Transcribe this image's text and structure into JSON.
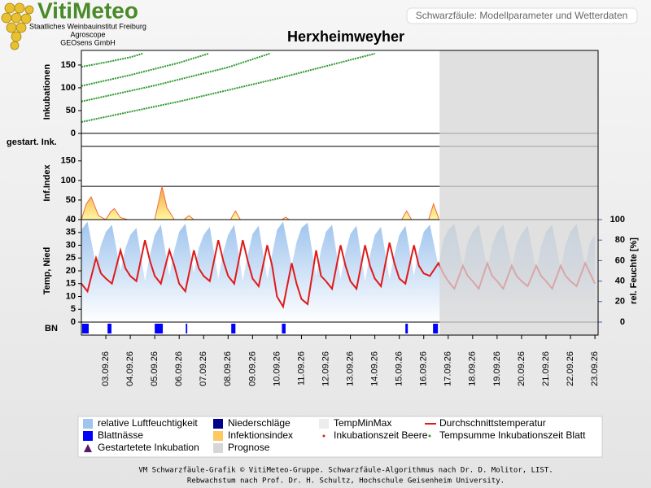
{
  "header": {
    "logo": "VitiMeteo",
    "org": [
      "Staatliches Weinbauinstitut Freiburg",
      "Agroscope",
      "GEOsens GmbH"
    ],
    "subtitle": "Schwarzfäule: Modellparameter und Wetterdaten"
  },
  "chart_data": {
    "type": "panels",
    "title": "Herxheimweyher",
    "xlim": [
      2,
      23.13
    ],
    "xticks": [
      {
        "value": 3,
        "label": "03.09.26"
      },
      {
        "value": 4,
        "label": "04.09.26"
      },
      {
        "value": 5,
        "label": "05.09.26"
      },
      {
        "value": 6,
        "label": "06.09.26"
      },
      {
        "value": 7,
        "label": "07.09.26"
      },
      {
        "value": 8,
        "label": "08.09.26"
      },
      {
        "value": 9,
        "label": "09.09.26"
      },
      {
        "value": 10,
        "label": "10.09.26"
      },
      {
        "value": 11,
        "label": "11.09.26"
      },
      {
        "value": 12,
        "label": "12.09.26"
      },
      {
        "value": 13,
        "label": "13.09.26"
      },
      {
        "value": 14,
        "label": "14.09.26"
      },
      {
        "value": 15,
        "label": "15.09.26"
      },
      {
        "value": 16,
        "label": "16.09.26"
      },
      {
        "value": 17,
        "label": "17.09.26"
      },
      {
        "value": 18,
        "label": "18.09.26"
      },
      {
        "value": 19,
        "label": "19.09.26"
      },
      {
        "value": 20,
        "label": "20.09.26"
      },
      {
        "value": 21,
        "label": "21.09.26"
      },
      {
        "value": 22,
        "label": "22.09.26"
      },
      {
        "value": 23,
        "label": "23.09.26"
      }
    ],
    "prognosis": {
      "start": 16.65,
      "color": "#d6d6d6"
    },
    "panels": [
      {
        "type": "line",
        "ylabel": "Inkubationen",
        "ylim": [
          0,
          182
        ],
        "yticks": [
          0,
          50,
          100,
          150
        ],
        "series": [
          {
            "type": "line",
            "color": "#2e9a2e",
            "x": [
              2,
              3,
              4,
              4.5,
              null,
              2,
              4,
              6,
              7.2,
              null,
              2,
              5,
              8,
              9.7,
              null,
              2,
              6,
              10,
              14
            ],
            "values": [
              146,
              156,
              167,
              175,
              null,
              104,
              128,
              155,
              175,
              null,
              70,
              105,
              145,
              175,
              null,
              25,
              70,
              120,
              175
            ]
          }
        ]
      },
      {
        "type": "empty",
        "ylabel": "gestart. Ink.",
        "series": []
      },
      {
        "type": "area",
        "ylabel": "Inf.Index",
        "ylim": [
          0,
          187
        ],
        "yticks": [
          0,
          50,
          100,
          150
        ],
        "reference_line": 85,
        "series": [
          {
            "type": "area",
            "color": "#f06a3a",
            "x": [
              2,
              2.2,
              2.4,
              2.7,
              3.0,
              3.2,
              3.35,
              3.6,
              3.9,
              5.0,
              5.3,
              5.5,
              5.8,
              6.2,
              6.4,
              6.6,
              8.1,
              8.3,
              8.5,
              10.2,
              10.35,
              10.5,
              15.1,
              15.3,
              15.5,
              16.2,
              16.4,
              16.6
            ],
            "values": [
              0,
              40,
              58,
              10,
              0,
              20,
              28,
              5,
              0,
              0,
              85,
              30,
              0,
              0,
              10,
              0,
              0,
              22,
              0,
              0,
              6,
              0,
              0,
              22,
              0,
              0,
              40,
              5
            ]
          }
        ]
      },
      {
        "type": "combo",
        "ylabel": "Temp, Nied",
        "ylim": [
          0,
          40
        ],
        "yticks": [
          0,
          5,
          10,
          15,
          20,
          25,
          30,
          35,
          40
        ],
        "y2label": "rel. Feuchte [%]",
        "y2lim": [
          0,
          100
        ],
        "y2ticks": [
          0,
          20,
          40,
          60,
          80,
          100
        ],
        "x": [
          2,
          2.25,
          2.6,
          2.8,
          3,
          3.25,
          3.6,
          3.8,
          4,
          4.25,
          4.6,
          4.8,
          5,
          5.25,
          5.6,
          5.8,
          6,
          6.25,
          6.6,
          6.8,
          7,
          7.25,
          7.6,
          7.8,
          8,
          8.25,
          8.6,
          8.8,
          9,
          9.25,
          9.6,
          9.8,
          10,
          10.25,
          10.6,
          10.8,
          11,
          11.25,
          11.6,
          11.8,
          12,
          12.25,
          12.6,
          12.8,
          13,
          13.25,
          13.6,
          13.8,
          14,
          14.25,
          14.6,
          14.8,
          15,
          15.25,
          15.6,
          15.8,
          16,
          16.25,
          16.6,
          16.8,
          17,
          17.25,
          17.6,
          17.8,
          18,
          18.25,
          18.6,
          18.8,
          19,
          19.25,
          19.6,
          19.8,
          20,
          20.25,
          20.6,
          20.8,
          21,
          21.25,
          21.6,
          21.8,
          22,
          22.25,
          22.6,
          22.8,
          23
        ],
        "series": [
          {
            "type": "area",
            "axis": "y2",
            "color": "#9fc4ee",
            "values": [
              90,
              98,
              55,
              75,
              88,
              95,
              50,
              72,
              85,
              92,
              40,
              65,
              85,
              95,
              45,
              70,
              88,
              96,
              48,
              72,
              85,
              93,
              42,
              68,
              85,
              95,
              40,
              65,
              86,
              94,
              42,
              66,
              90,
              98,
              55,
              78,
              92,
              97,
              45,
              70,
              88,
              95,
              42,
              68,
              86,
              94,
              40,
              65,
              85,
              93,
              42,
              66,
              85,
              94,
              45,
              70,
              88,
              95,
              55,
              80,
              90,
              96,
              55,
              78,
              88,
              95,
              52,
              75,
              88,
              95,
              55,
              76,
              86,
              94,
              50,
              74,
              88,
              95,
              52,
              76,
              88,
              96,
              55,
              78,
              85
            ]
          },
          {
            "type": "line",
            "axis": "y",
            "color": "#e01a1a",
            "values": [
              15,
              12,
              25,
              19,
              17,
              15,
              28,
              21,
              18,
              16,
              32,
              24,
              18,
              15,
              28,
              22,
              15,
              12,
              28,
              21,
              18,
              16,
              32,
              24,
              18,
              15,
              32,
              24,
              17,
              14,
              30,
              22,
              10,
              6,
              23,
              15,
              9,
              7,
              28,
              18,
              16,
              13,
              30,
              22,
              16,
              13,
              30,
              22,
              17,
              14,
              31,
              23,
              17,
              15,
              30,
              22,
              19,
              18,
              23,
              19,
              16,
              13,
              22,
              18,
              16,
              13,
              23,
              18,
              16,
              13,
              22,
              18,
              16,
              14,
              22,
              18,
              16,
              13,
              22,
              18,
              16,
              14,
              23,
              19,
              15
            ]
          }
        ]
      },
      {
        "type": "intervals",
        "ylabel": "BN",
        "series": [
          {
            "type": "intervals",
            "color": "#0000ff",
            "start": [
              2.03,
              3.07,
              5.0,
              6.27,
              8.13,
              10.2,
              15.25,
              16.38
            ],
            "end": [
              2.3,
              3.23,
              5.33,
              6.33,
              8.3,
              10.35,
              15.35,
              16.58
            ]
          }
        ]
      }
    ],
    "legend": [
      {
        "name": "relative Luftfeuchtigkeit",
        "color": "#9fc4ee",
        "symbol": "square"
      },
      {
        "name": "Niederschläge",
        "color": "#00008b",
        "symbol": "square"
      },
      {
        "name": "TempMinMax",
        "color": "#ececec",
        "symbol": "square"
      },
      {
        "name": "Durchschnittstemperatur",
        "color": "#e01a1a",
        "symbol": "line"
      },
      {
        "name": "Blattnässe",
        "color": "#0000ff",
        "symbol": "square"
      },
      {
        "name": "Infektionsindex",
        "color": "#ffc860",
        "symbol": "square"
      },
      {
        "name": "Inkubationszeit Beere",
        "color": "#e01a1a",
        "symbol": "dot"
      },
      {
        "name": "Tempsumme Inkubationszeit Blatt",
        "color": "#2e9a2e",
        "symbol": "dot"
      },
      {
        "name": "Gestartetete Inkubation",
        "color": "#5a1a6a",
        "symbol": "triangle"
      },
      {
        "name": "Prognose",
        "color": "#d6d6d6",
        "symbol": "square"
      }
    ]
  },
  "footer": [
    "VM Schwarzfäule-Grafik © VitiMeteo-Gruppe. Schwarzfäule-Algorithmus nach Dr. D. Molitor, LIST.",
    "Rebwachstum nach Prof. Dr. H. Schultz, Hochschule Geisenheim University."
  ]
}
